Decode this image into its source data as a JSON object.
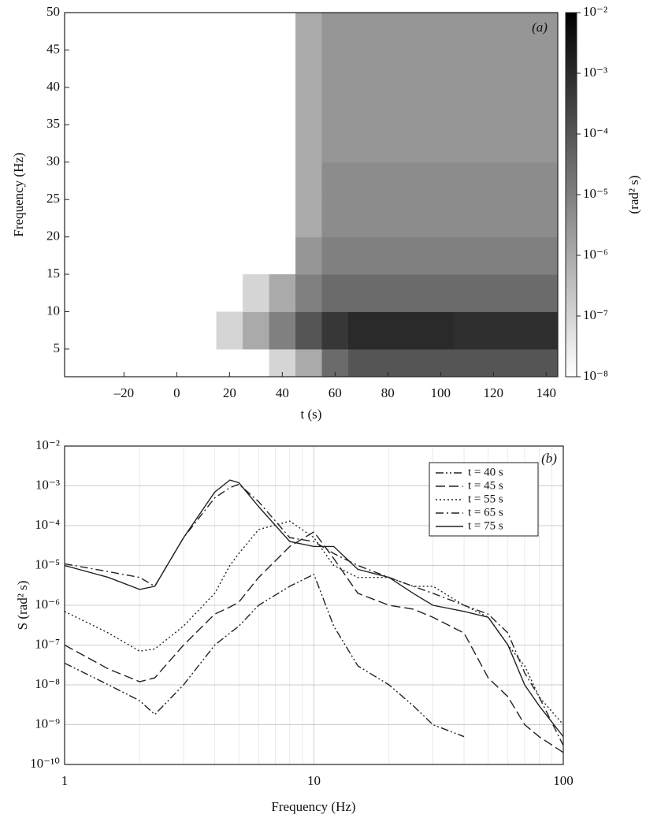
{
  "chart_data": [
    {
      "type": "heatmap",
      "panel_label": "(a)",
      "xlabel": "t (s)",
      "ylabel": "Frequency (Hz)",
      "xlim": [
        -42.5,
        144.4
      ],
      "ylim": [
        1.3,
        50
      ],
      "xticks": [
        {
          "value": -20,
          "label": "–20"
        },
        0,
        20,
        40,
        60,
        80,
        100,
        120,
        140
      ],
      "yticks": [
        5,
        10,
        15,
        20,
        25,
        30,
        35,
        40,
        45,
        50
      ],
      "x": [
        20,
        30,
        40,
        50,
        60,
        70,
        80,
        90,
        100,
        110,
        120,
        130,
        140
      ],
      "y": [
        2.5,
        7.5,
        12.5,
        17.5,
        22.5,
        27.5,
        32.5,
        37.5,
        42.5,
        47.5
      ],
      "z": [
        [
          null,
          null,
          1e-07,
          1e-06,
          3e-05,
          0.0001,
          0.0001,
          0.0001,
          0.0001,
          0.0001,
          0.0001,
          0.0001,
          0.0001
        ],
        [
          1e-07,
          1e-06,
          1e-05,
          0.0001,
          0.0005,
          0.001,
          0.001,
          0.001,
          0.001,
          0.0008,
          0.0008,
          0.0008,
          0.0008
        ],
        [
          null,
          1e-07,
          1e-06,
          1e-05,
          3e-05,
          3e-05,
          3e-05,
          3e-05,
          3e-05,
          3e-05,
          3e-05,
          3e-05,
          3e-05
        ],
        [
          null,
          null,
          null,
          3e-06,
          1e-05,
          1e-05,
          1e-05,
          1e-05,
          1e-05,
          1e-05,
          1e-05,
          1e-05,
          1e-05
        ],
        [
          null,
          null,
          null,
          1e-06,
          5e-06,
          5e-06,
          5e-06,
          5e-06,
          5e-06,
          5e-06,
          5e-06,
          5e-06,
          5e-06
        ],
        [
          null,
          null,
          null,
          1e-06,
          5e-06,
          5e-06,
          5e-06,
          5e-06,
          5e-06,
          5e-06,
          5e-06,
          5e-06,
          5e-06
        ],
        [
          null,
          null,
          null,
          1e-06,
          3e-06,
          3e-06,
          3e-06,
          3e-06,
          3e-06,
          3e-06,
          3e-06,
          3e-06,
          3e-06
        ],
        [
          null,
          null,
          null,
          1e-06,
          3e-06,
          3e-06,
          3e-06,
          3e-06,
          3e-06,
          3e-06,
          3e-06,
          3e-06,
          3e-06
        ],
        [
          null,
          null,
          null,
          1e-06,
          3e-06,
          3e-06,
          3e-06,
          3e-06,
          3e-06,
          3e-06,
          3e-06,
          3e-06,
          3e-06
        ],
        [
          null,
          null,
          null,
          1e-06,
          3e-06,
          3e-06,
          3e-06,
          3e-06,
          3e-06,
          3e-06,
          3e-06,
          3e-06,
          3e-06
        ]
      ],
      "zscale": "log",
      "zlim": [
        1e-08,
        0.01
      ],
      "zlabel": "(rad² s)",
      "zticks": [
        {
          "value": 0.01,
          "label": "10⁻²"
        },
        {
          "value": 0.001,
          "label": "10⁻³"
        },
        {
          "value": 0.0001,
          "label": "10⁻⁴"
        },
        {
          "value": 1e-05,
          "label": "10⁻⁵"
        },
        {
          "value": 1e-06,
          "label": "10⁻⁶"
        },
        {
          "value": 1e-07,
          "label": "10⁻⁷"
        },
        {
          "value": 1e-08,
          "label": "10⁻⁸"
        }
      ]
    },
    {
      "type": "line",
      "panel_label": "(b)",
      "xlabel": "Frequency (Hz)",
      "ylabel": "S (rad² s)",
      "xscale": "log",
      "yscale": "log",
      "grid": true,
      "legend": "top-right",
      "xlim": [
        1,
        100
      ],
      "ylim": [
        1e-10,
        0.01
      ],
      "xticks": [
        1,
        10,
        100
      ],
      "yticks": [
        {
          "value": 0.01,
          "label": "10⁻²"
        },
        {
          "value": 0.001,
          "label": "10⁻³"
        },
        {
          "value": 0.0001,
          "label": "10⁻⁴"
        },
        {
          "value": 1e-05,
          "label": "10⁻⁵"
        },
        {
          "value": 1e-06,
          "label": "10⁻⁶"
        },
        {
          "value": 1e-07,
          "label": "10⁻⁷"
        },
        {
          "value": 1e-08,
          "label": "10⁻⁸"
        },
        {
          "value": 1e-09,
          "label": "10⁻⁹"
        },
        {
          "value": 1e-10,
          "label": "10⁻¹⁰"
        }
      ],
      "x": [
        1,
        1.5,
        2,
        2.3,
        3,
        4,
        4.6,
        5,
        6,
        8,
        10,
        12,
        15,
        20,
        25,
        30,
        40,
        50,
        60,
        70,
        80,
        100
      ],
      "series": [
        {
          "name": "t = 40 s",
          "color": "#222222",
          "linestyle": "dashdotdot",
          "values": [
            3.5e-08,
            1e-08,
            4e-09,
            1.8e-09,
            1e-08,
            1e-07,
            2e-07,
            3e-07,
            1e-06,
            3e-06,
            6e-06,
            3e-07,
            3e-08,
            1e-08,
            3e-09,
            1e-09,
            5e-10,
            null,
            null,
            null,
            null,
            null
          ]
        },
        {
          "name": "t = 45 s",
          "color": "#222222",
          "linestyle": "dash",
          "values": [
            1e-07,
            2.5e-08,
            1.2e-08,
            1.5e-08,
            1e-07,
            6e-07,
            9e-07,
            1.2e-06,
            5e-06,
            3e-05,
            7e-05,
            1.5e-05,
            2e-06,
            1e-06,
            8e-07,
            5e-07,
            2e-07,
            1.5e-08,
            5e-09,
            1e-09,
            5e-10,
            2e-10
          ]
        },
        {
          "name": "t = 55 s",
          "color": "#222222",
          "linestyle": "dot",
          "values": [
            7e-07,
            2e-07,
            7e-08,
            8e-08,
            3e-07,
            2e-06,
            1e-05,
            2e-05,
            8e-05,
            0.00013,
            5e-05,
            1e-05,
            5e-06,
            5e-06,
            3e-06,
            3e-06,
            1e-06,
            5e-07,
            1e-07,
            3e-08,
            5e-09,
            1e-09
          ]
        },
        {
          "name": "t = 65 s",
          "color": "#222222",
          "linestyle": "dashdot",
          "values": [
            1.1e-05,
            7e-06,
            5e-06,
            3e-06,
            5e-05,
            0.0005,
            0.0009,
            0.0011,
            0.0004,
            5e-05,
            4e-05,
            2e-05,
            1e-05,
            5e-06,
            3e-06,
            2e-06,
            1e-06,
            6e-07,
            2e-07,
            2e-08,
            5e-09,
            3e-10
          ]
        },
        {
          "name": "t = 75 s",
          "color": "#222222",
          "linestyle": "solid",
          "values": [
            1e-05,
            5e-06,
            2.5e-06,
            3e-06,
            5e-05,
            0.0007,
            0.0014,
            0.0012,
            0.0003,
            4e-05,
            3e-05,
            3e-05,
            8e-06,
            5e-06,
            2e-06,
            1e-06,
            7e-07,
            5e-07,
            1e-07,
            1e-08,
            3e-09,
            5e-10
          ]
        }
      ]
    }
  ]
}
